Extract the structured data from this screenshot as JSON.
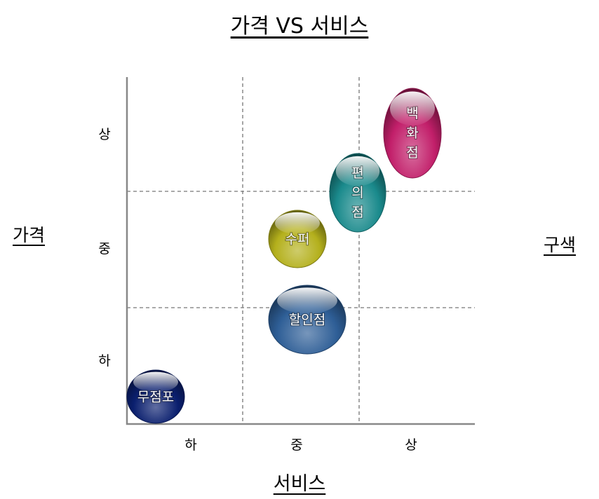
{
  "title": "가격 VS 서비스",
  "y_axis_label": "가격",
  "x_axis_label": "서비스",
  "right_label": "구색",
  "y_ticks": [
    "상",
    "중",
    "하"
  ],
  "x_ticks": [
    "하",
    "중",
    "상"
  ],
  "bubbles": [
    {
      "label": "무점포",
      "color": "#0a1f6e"
    },
    {
      "label": "할인점",
      "color": "#2e5e96"
    },
    {
      "label": "수퍼",
      "color": "#b4b01c"
    },
    {
      "label": "편의점",
      "color": "#1a8a8c"
    },
    {
      "label": "백화점",
      "color": "#c21f6a"
    }
  ]
}
